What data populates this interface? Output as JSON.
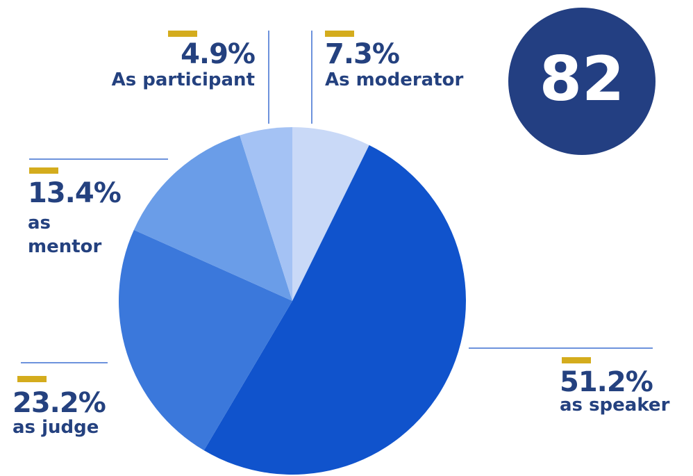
{
  "chart_data": {
    "type": "pie",
    "categories": [
      "As moderator",
      "as speaker",
      "as judge",
      "as mentor",
      "As participant"
    ],
    "values": [
      7.3,
      51.2,
      23.2,
      13.4,
      4.9
    ],
    "value_labels": [
      "7.3%",
      "51.2%",
      "23.2%",
      "13.4%",
      "4.9%"
    ],
    "colors": [
      "#c9d9f7",
      "#1053cc",
      "#3b78db",
      "#6a9de8",
      "#a4c2f4"
    ],
    "total": "82"
  }
}
